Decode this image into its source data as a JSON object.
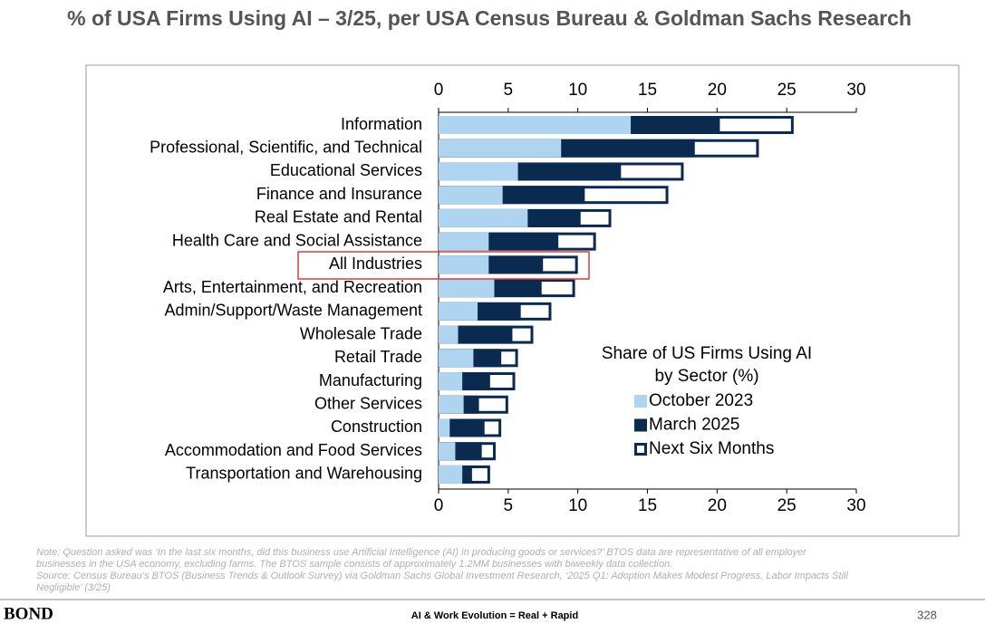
{
  "header": {
    "title": "% of USA Firms Using AI – 3/25, per USA Census Bureau & Goldman Sachs Research"
  },
  "chart_data": {
    "type": "barh",
    "categories": [
      "Information",
      "Professional, Scientific, and Technical",
      "Educational Services",
      "Finance and Insurance",
      "Real Estate and Rental",
      "Health Care and Social Assistance",
      "All Industries",
      "Arts, Entertainment, and Recreation",
      "Admin/Support/Waste Management",
      "Wholesale Trade",
      "Retail Trade",
      "Manufacturing",
      "Other Services",
      "Construction",
      "Accommodation and Food Services",
      "Transportation and Warehousing"
    ],
    "series": [
      {
        "name": "October 2023",
        "color": "#aed4f0",
        "values": [
          13.8,
          8.8,
          5.7,
          4.6,
          6.4,
          3.6,
          3.6,
          4.0,
          2.8,
          1.4,
          2.5,
          1.7,
          1.8,
          0.8,
          1.2,
          1.7
        ]
      },
      {
        "name": "March 2025",
        "color": "#0b2a4f",
        "values": [
          20.2,
          18.4,
          13.1,
          10.5,
          10.2,
          8.6,
          7.5,
          7.4,
          5.9,
          5.3,
          4.5,
          3.7,
          2.9,
          3.3,
          3.1,
          2.4
        ]
      },
      {
        "name": "Next Six Months",
        "color": "#ffffff",
        "values": [
          25.5,
          23.0,
          17.6,
          16.5,
          12.4,
          11.3,
          10.0,
          9.8,
          8.1,
          6.8,
          5.7,
          5.5,
          5.0,
          4.5,
          4.1,
          3.7
        ]
      }
    ],
    "legend_title": [
      "Share of US Firms Using AI",
      "by Sector (%)"
    ],
    "xlim": [
      0,
      30
    ],
    "xticks": [
      0,
      5,
      10,
      15,
      20,
      25,
      30
    ]
  },
  "notes": [
    "Note: Question asked was ‘In the last six months, did this business use Artificial Intelligence (AI) in producing goods or services?’ BTOS data are representative of all employer",
    "businesses in the USA economy, excluding farms. The BTOS sample consists of approximately 1.2MM businesses with biweekly data collection.",
    "Source: Census Bureau’s BTOS (Business Trends & Outlook Survey) via Goldman Sachs Global Investment Research, ‘2025 Q1: Adoption Makes Modest Progress, Labor Impacts Still",
    "Negligible’ (3/25)"
  ],
  "footer": {
    "brand": "BOND",
    "center": "AI & Work Evolution = Real + Rapid",
    "page": "328"
  }
}
